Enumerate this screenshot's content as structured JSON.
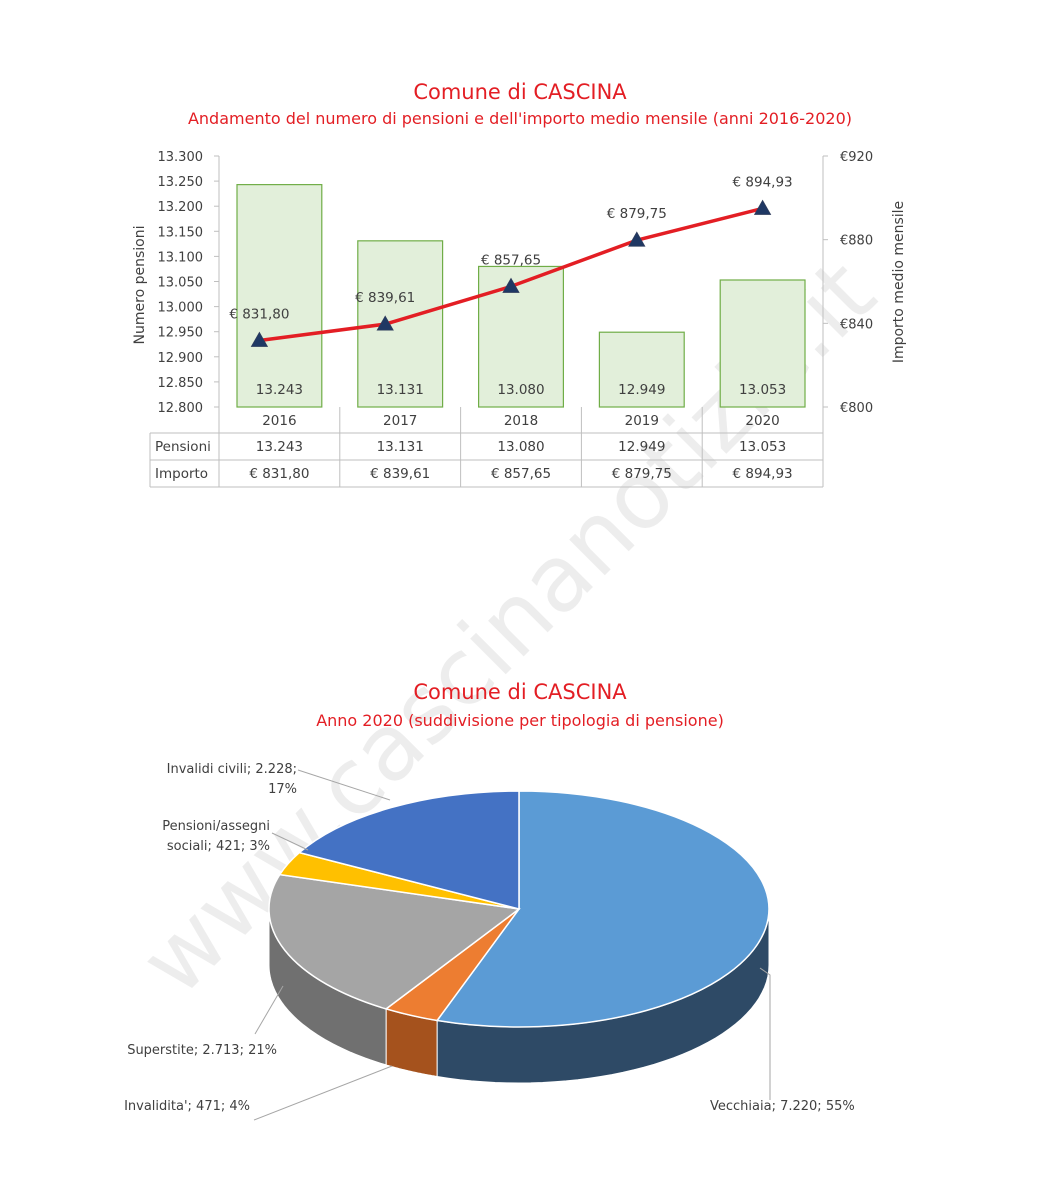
{
  "watermark": "www.cascinanotizie.it",
  "chart_data": [
    {
      "type": "bar",
      "title": "Comune di CASCINA",
      "subtitle": "Andamento del numero di pensioni e dell'importo medio mensile (anni 2016-2020)",
      "categories": [
        "2016",
        "2017",
        "2018",
        "2019",
        "2020"
      ],
      "ylabel": "Numero pensioni",
      "y2label": "Importo medio mensile",
      "ylim": [
        12800,
        13300
      ],
      "y2lim": [
        800,
        920
      ],
      "yticks": [
        "12.800",
        "12.850",
        "12.900",
        "12.950",
        "13.000",
        "13.050",
        "13.100",
        "13.150",
        "13.200",
        "13.250",
        "13.300"
      ],
      "y2ticks": [
        "€800",
        "€840",
        "€880",
        "€920"
      ],
      "series": [
        {
          "name": "Pensioni",
          "type": "bar",
          "axis": "left",
          "values": [
            13243,
            13131,
            13080,
            12949,
            13053
          ],
          "labels": [
            "13.243",
            "13.131",
            "13.080",
            "12.949",
            "13.053"
          ],
          "color": "#e2efda",
          "stroke": "#70ad47"
        },
        {
          "name": "Importo",
          "type": "line",
          "axis": "right",
          "values": [
            831.8,
            839.61,
            857.65,
            879.75,
            894.93
          ],
          "labels": [
            "€ 831,80",
            "€ 839,61",
            "€ 857,65",
            "€ 879,75",
            "€ 894,93"
          ],
          "color": "#e31e24",
          "marker_color": "#1f3864"
        }
      ],
      "grid": false,
      "data_table": true
    },
    {
      "type": "pie",
      "title": "Comune di CASCINA",
      "subtitle": "Anno 2020 (suddivisione per tipologia di pensione)",
      "slices": [
        {
          "label": "Vecchiaia; 7.220; 55%",
          "value": 7220,
          "color": "#5b9bd5",
          "side": "#2e4a66"
        },
        {
          "label": "Invalidita'; 471; 4%",
          "value": 471,
          "color": "#ed7d31",
          "side": "#a5521d"
        },
        {
          "label": "Superstite; 2.713; 21%",
          "value": 2713,
          "color": "#a5a5a5",
          "side": "#707070"
        },
        {
          "label": "Pensioni/assegni sociali; 421; 3%",
          "value": 421,
          "color": "#ffc000",
          "side": "#b08400"
        },
        {
          "label": "Invalidi civili; 2.228; 17%",
          "value": 2228,
          "color": "#4472c4",
          "side": "#2b4a80"
        }
      ]
    }
  ]
}
